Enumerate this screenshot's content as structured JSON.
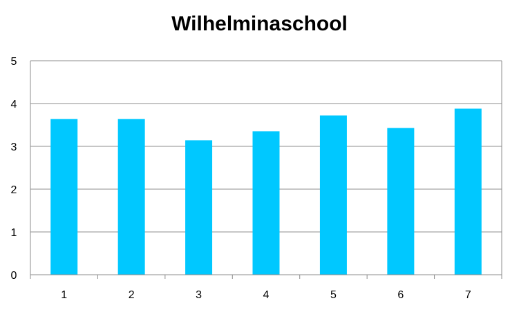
{
  "chart_data": {
    "type": "bar",
    "title": "Wilhelminaschool",
    "categories": [
      "1",
      "2",
      "3",
      "4",
      "5",
      "6",
      "7"
    ],
    "values": [
      3.64,
      3.64,
      3.14,
      3.35,
      3.72,
      3.43,
      3.88
    ],
    "ylim": [
      0,
      5
    ],
    "yticks": [
      "0",
      "1",
      "2",
      "3",
      "4",
      "5"
    ],
    "grid": true,
    "xlabel": "",
    "ylabel": "",
    "bar_color": "#00c8ff",
    "grid_color": "#8c8c8c"
  }
}
